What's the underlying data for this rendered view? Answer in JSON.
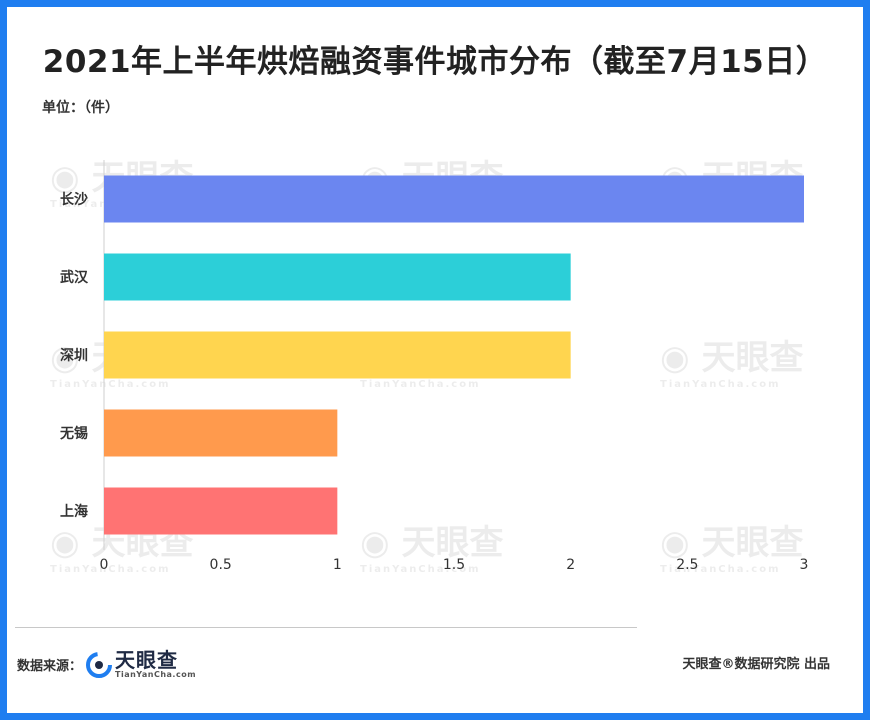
{
  "title": "2021年上半年烘焙融资事件城市分布（截至7月15日）",
  "unit": "单位：（件）",
  "chart_data": {
    "type": "bar",
    "orientation": "horizontal",
    "categories": [
      "长沙",
      "武汉",
      "深圳",
      "无锡",
      "上海"
    ],
    "values": [
      3,
      2,
      2,
      1,
      1
    ],
    "colors": [
      "#6b86f0",
      "#2ccfd8",
      "#ffd54f",
      "#ff9a4d",
      "#ff7373"
    ],
    "xlim": [
      0,
      3
    ],
    "xticks": [
      "0",
      "0.5",
      "1",
      "1.5",
      "2",
      "2.5",
      "3"
    ],
    "grid": false,
    "legend": "none"
  },
  "footer": {
    "source_label": "数据来源：",
    "brand_name": "天眼查",
    "brand_domain": "TianYanCha.com",
    "credit": "天眼查®数据研究院 出品"
  },
  "watermark": {
    "text": "天眼查",
    "domain": "TianYanCha.com"
  }
}
